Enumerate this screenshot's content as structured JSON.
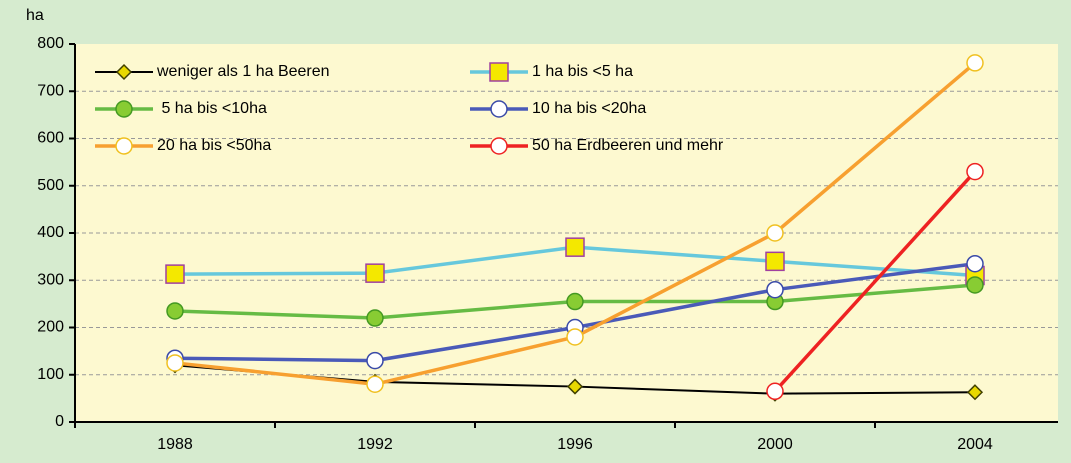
{
  "chart_data": {
    "type": "line",
    "y_label": "ha",
    "categories": [
      "1988",
      "1992",
      "1996",
      "2000",
      "2004"
    ],
    "series": [
      {
        "name": "weniger als 1 ha Beeren",
        "color": "#000000",
        "marker": "diamond",
        "marker_fill": "#e8d800",
        "marker_edge": "#404000",
        "values": [
          120,
          85,
          75,
          60,
          63
        ]
      },
      {
        "name": "1 ha bis <5 ha",
        "color": "#66c8dc",
        "marker": "square",
        "marker_fill": "#f4e800",
        "marker_edge": "#a040a0",
        "values": [
          313,
          315,
          370,
          340,
          310
        ]
      },
      {
        "name": " 5 ha bis <10ha",
        "color": "#66bb44",
        "marker": "circle",
        "marker_fill": "#88cc33",
        "marker_edge": "#449922",
        "values": [
          235,
          220,
          255,
          255,
          290
        ]
      },
      {
        "name": "10 ha bis <20ha",
        "color": "#4a5ab8",
        "marker": "circle",
        "marker_fill": "#ffffff",
        "marker_edge": "#3a4aa8",
        "values": [
          135,
          130,
          200,
          280,
          335
        ]
      },
      {
        "name": "20 ha bis <50ha",
        "color": "#f7a030",
        "marker": "circle",
        "marker_fill": "#ffffff",
        "marker_edge": "#f0c020",
        "values": [
          125,
          80,
          180,
          400,
          760
        ]
      },
      {
        "name": "50 ha Erdbeeren und mehr",
        "color": "#ee2222",
        "marker": "circle",
        "marker_fill": "#ffffff",
        "marker_edge": "#ee2222",
        "values": [
          null,
          null,
          null,
          65,
          530
        ]
      }
    ],
    "ylim": [
      0,
      800
    ],
    "yticks": [
      0,
      100,
      200,
      300,
      400,
      500,
      600,
      700,
      800
    ],
    "grid": true,
    "legend": "upper left"
  }
}
